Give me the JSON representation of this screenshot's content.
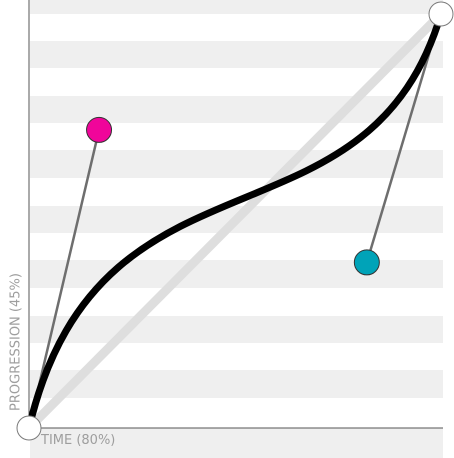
{
  "axes": {
    "x_label": "TIME (80%)",
    "y_label": "PROGRESSION (45%)"
  },
  "curve": {
    "start": [
      0,
      0
    ],
    "control_point_1": [
      0.17,
      0.72
    ],
    "control_point_2": [
      0.82,
      0.4
    ],
    "end": [
      1,
      1
    ]
  },
  "colors": {
    "curve": "#000000",
    "linear_reference": "#dedede",
    "stripe": "#efefef",
    "handle_line": "#6e6e6e",
    "control_point_1": "#f0059a",
    "control_point_2": "#00a3b8",
    "anchor_point": "#ffffff"
  }
}
